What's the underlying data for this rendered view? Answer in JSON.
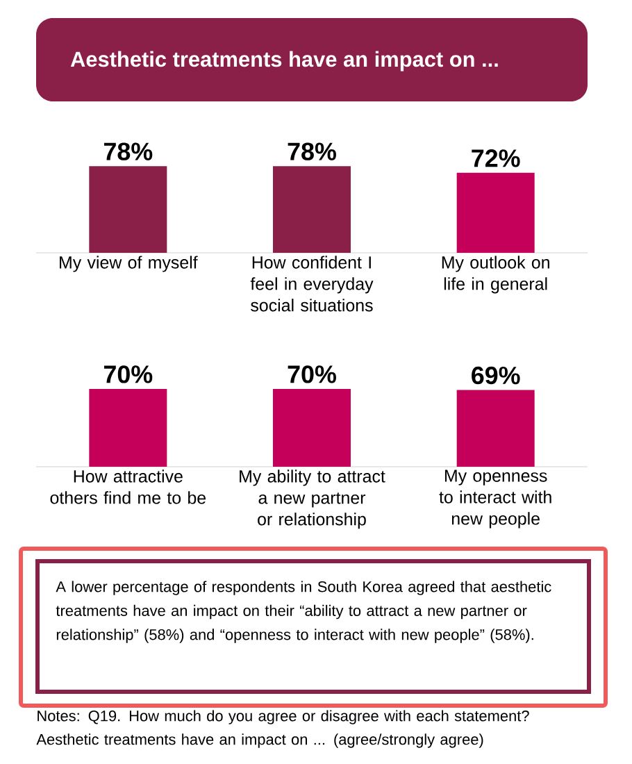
{
  "chart_data": [
    {
      "type": "bar",
      "title": "Aesthetic treatments have an impact on ...",
      "categories": [
        "My view of myself",
        "How confident I feel in everyday social situations",
        "My outlook on life in general"
      ],
      "values": [
        78,
        78,
        72
      ],
      "colors": [
        "#8a1f47",
        "#8a1f47",
        "#c4005a"
      ],
      "value_labels": [
        "78%",
        "78%",
        "72%"
      ]
    },
    {
      "type": "bar",
      "categories": [
        "How attractive others find me to be",
        "My ability to attract a new partner or relationship",
        "My openness to interact with new people"
      ],
      "values": [
        70,
        70,
        69
      ],
      "colors": [
        "#c4005a",
        "#c4005a",
        "#c4005a"
      ],
      "value_labels": [
        "70%",
        "70%",
        "69%"
      ],
      "annotations": [
        "A lower percentage of respondents in South Korea agreed that aesthetic treatments have an impact on their “ability to attract a new partner or relationship” (58%) and “openness to interact with new people” (58%).",
        "Notes: Q19. How much do you agree or disagree with each statement? Aesthetic treatments have an impact on ... (agree/strongly agree)"
      ]
    }
  ]
}
